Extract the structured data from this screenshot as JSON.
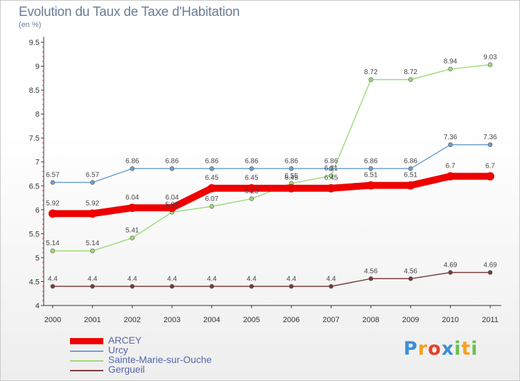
{
  "header": {
    "title": "Evolution du Taux de Taxe d'Habitation",
    "subtitle": "(en %)"
  },
  "logo": {
    "text": "Proxiti",
    "letter_colors": [
      "#3c8fd8",
      "#f4a020",
      "#e8402a",
      "#3c8fd8",
      "#6cc04a",
      "#f4a020",
      "#6cc04a"
    ]
  },
  "chart_data": {
    "type": "line",
    "title": "Evolution du Taux de Taxe d'Habitation",
    "subtitle": "(en %)",
    "xlabel": "",
    "ylabel": "",
    "x": [
      "2000",
      "2001",
      "2002",
      "2003",
      "2004",
      "2005",
      "2006",
      "2007",
      "2008",
      "2009",
      "2010",
      "2011"
    ],
    "ylim": [
      4,
      9.5
    ],
    "yticks": [
      "4",
      "4.5",
      "5",
      "5.5",
      "6",
      "6.5",
      "7",
      "7.5",
      "8",
      "8.5",
      "9",
      "9.5"
    ],
    "grid": false,
    "legend_position": "bottom-left",
    "series": [
      {
        "name": "ARCEY",
        "color": "#ee0000",
        "emphasis": true,
        "values": [
          5.92,
          5.92,
          6.04,
          6.04,
          6.45,
          6.45,
          6.45,
          6.45,
          6.51,
          6.51,
          6.7,
          6.7
        ],
        "labels": [
          "5.92",
          "5.92",
          "6.04",
          "6.04",
          "6.45",
          "6.45",
          "6.45",
          "6.45",
          "6.51",
          "6.51",
          "6.7",
          "6.7"
        ]
      },
      {
        "name": "Urcy",
        "color": "#6f9fcf",
        "values": [
          6.57,
          6.57,
          6.86,
          6.86,
          6.86,
          6.86,
          6.86,
          6.86,
          6.86,
          6.86,
          7.36,
          7.36
        ],
        "labels": [
          "6.57",
          "6.57",
          "6.86",
          "6.86",
          "6.86",
          "6.86",
          "6.86",
          "6.86",
          "6.86",
          "6.86",
          "7.36",
          "7.36"
        ]
      },
      {
        "name": "Sainte-Marie-sur-Ouche",
        "color": "#9edc7a",
        "values": [
          5.14,
          5.14,
          5.41,
          5.95,
          6.07,
          6.23,
          6.55,
          6.71,
          8.72,
          8.72,
          8.94,
          9.03
        ],
        "labels": [
          "5.14",
          "5.14",
          "5.41",
          "5.95",
          "6.07",
          "6.23",
          "6.55",
          "6.71",
          "8.72",
          "8.72",
          "8.94",
          "9.03"
        ]
      },
      {
        "name": "Gergueil",
        "color": "#7a3a3a",
        "values": [
          4.4,
          4.4,
          4.4,
          4.4,
          4.4,
          4.4,
          4.4,
          4.4,
          4.56,
          4.56,
          4.69,
          4.69
        ],
        "labels": [
          "4.4",
          "4.4",
          "4.4",
          "4.4",
          "4.4",
          "4.4",
          "4.4",
          "4.4",
          "4.56",
          "4.56",
          "4.69",
          "4.69"
        ]
      }
    ]
  }
}
